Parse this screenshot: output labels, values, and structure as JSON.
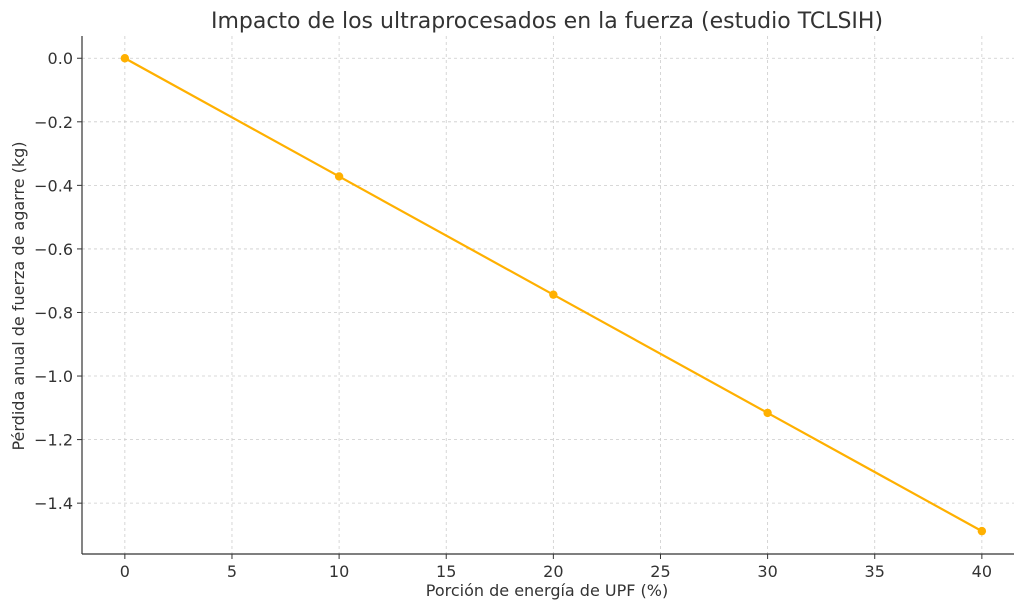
{
  "chart_data": {
    "type": "line",
    "title": "Impacto de los ultraprocesados en la fuerza (estudio TCLSIH)",
    "xlabel": "Porción de energía de UPF (%)",
    "ylabel": "Pérdida anual de fuerza de agarre (kg)",
    "xlim": [
      -2,
      41.5
    ],
    "ylim": [
      -1.56,
      0.07
    ],
    "x_ticks": [
      0,
      5,
      10,
      15,
      20,
      25,
      30,
      35,
      40
    ],
    "y_ticks": [
      0.0,
      -0.2,
      -0.4,
      -0.6,
      -0.8,
      -1.0,
      -1.2,
      -1.4
    ],
    "y_tick_labels": [
      "0.0",
      "−0.2",
      "−0.4",
      "−0.6",
      "−0.8",
      "−1.0",
      "−1.2",
      "−1.4"
    ],
    "grid": true,
    "series": [
      {
        "x": [
          0,
          10,
          20,
          30,
          40
        ],
        "y": [
          0.0,
          -0.372,
          -0.744,
          -1.116,
          -1.488
        ],
        "color": "#FFB000"
      }
    ]
  }
}
